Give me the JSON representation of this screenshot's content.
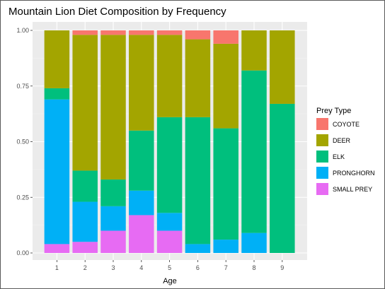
{
  "chart_data": {
    "type": "bar",
    "stacked": true,
    "title": "Mountain Lion Diet Composition by Frequency",
    "xlabel": "Age",
    "ylabel": "",
    "ylim": [
      0,
      1
    ],
    "yticks": [
      "0.00",
      "0.25",
      "0.50",
      "0.75",
      "1.00"
    ],
    "categories": [
      "1",
      "2",
      "3",
      "4",
      "5",
      "6",
      "7",
      "8",
      "9"
    ],
    "grid": true,
    "legend_title": "Prey Type",
    "legend_position": "right",
    "series": [
      {
        "name": "SMALL PREY",
        "color": "#E76BF3",
        "values": [
          0.04,
          0.05,
          0.1,
          0.17,
          0.1,
          0.0,
          0.0,
          0.0,
          0.0
        ]
      },
      {
        "name": "PRONGHORN",
        "color": "#00B0F6",
        "values": [
          0.65,
          0.18,
          0.11,
          0.11,
          0.08,
          0.04,
          0.06,
          0.09,
          0.0
        ]
      },
      {
        "name": "ELK",
        "color": "#00BF7D",
        "values": [
          0.05,
          0.14,
          0.12,
          0.27,
          0.43,
          0.57,
          0.5,
          0.73,
          0.67
        ]
      },
      {
        "name": "DEER",
        "color": "#A3A500",
        "values": [
          0.26,
          0.61,
          0.65,
          0.43,
          0.37,
          0.35,
          0.38,
          0.18,
          0.33
        ]
      },
      {
        "name": "COYOTE",
        "color": "#F8766D",
        "values": [
          0.0,
          0.02,
          0.02,
          0.02,
          0.02,
          0.04,
          0.06,
          0.0,
          0.0
        ]
      }
    ],
    "legend_order": [
      "COYOTE",
      "DEER",
      "ELK",
      "PRONGHORN",
      "SMALL PREY"
    ]
  }
}
